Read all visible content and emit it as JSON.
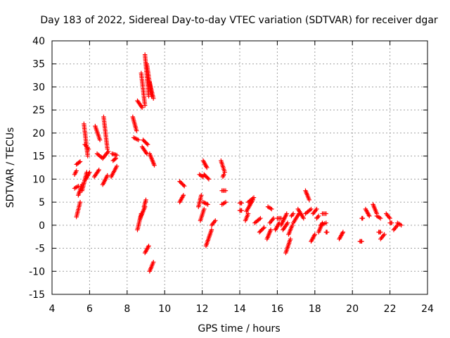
{
  "chart_data": {
    "type": "scatter",
    "title": "Day 183 of 2022, Sidereal Day-to-day VTEC variation (SDTVAR) for receiver dgar",
    "xlabel": "GPS time / hours",
    "ylabel": "SDTVAR / TECUs",
    "xlim": [
      4,
      24
    ],
    "ylim": [
      -15,
      40
    ],
    "xticks": [
      "4",
      "6",
      "8",
      "10",
      "12",
      "14",
      "16",
      "18",
      "20",
      "22",
      "24"
    ],
    "yticks": [
      "-15",
      "-10",
      "-5",
      "0",
      "5",
      "10",
      "15",
      "20",
      "25",
      "30",
      "35",
      "40"
    ],
    "grid": true,
    "marker": "+",
    "color": "#ff0000",
    "series": [
      {
        "name": "SDTVAR",
        "segments": [
          [
            5.2,
            11.0,
            5.3,
            11.8
          ],
          [
            5.2,
            8.0,
            5.4,
            8.5
          ],
          [
            5.3,
            1.8,
            5.5,
            5.0
          ],
          [
            5.3,
            13.2,
            5.5,
            13.8
          ],
          [
            5.4,
            6.5,
            5.6,
            8.8
          ],
          [
            5.6,
            7.5,
            5.85,
            11.5
          ],
          [
            5.7,
            22.0,
            5.9,
            15.0
          ],
          [
            5.8,
            10.0,
            6.0,
            11.5
          ],
          [
            5.75,
            17.5,
            5.95,
            16.5
          ],
          [
            6.3,
            21.5,
            6.55,
            18.5
          ],
          [
            6.25,
            10.5,
            6.5,
            12.0
          ],
          [
            6.4,
            15.5,
            6.7,
            14.5
          ],
          [
            6.75,
            23.5,
            6.95,
            16.5
          ],
          [
            6.7,
            8.8,
            6.95,
            10.8
          ],
          [
            6.7,
            14.5,
            7.0,
            16.0
          ],
          [
            7.2,
            15.5,
            7.45,
            15.2
          ],
          [
            7.15,
            10.5,
            7.45,
            12.8
          ],
          [
            7.25,
            14.0,
            7.4,
            14.5
          ],
          [
            8.3,
            23.5,
            8.5,
            20.5
          ],
          [
            8.35,
            19.0,
            8.6,
            18.5
          ],
          [
            8.55,
            27.0,
            8.8,
            25.5
          ],
          [
            8.55,
            -1.0,
            8.75,
            2.5
          ],
          [
            8.7,
            1.5,
            8.95,
            4.0
          ],
          [
            8.9,
            4.0,
            9.0,
            5.5
          ],
          [
            8.75,
            33.0,
            8.95,
            26.0
          ],
          [
            8.85,
            18.5,
            9.1,
            17.5
          ],
          [
            8.8,
            17.0,
            9.05,
            15.5
          ],
          [
            8.95,
            37.0,
            9.15,
            28.0
          ],
          [
            9.05,
            35.0,
            9.3,
            28.0
          ],
          [
            9.2,
            31.0,
            9.4,
            27.5
          ],
          [
            8.95,
            -6.0,
            9.15,
            -4.5
          ],
          [
            9.2,
            15.5,
            9.45,
            13.0
          ],
          [
            9.2,
            -10.0,
            9.4,
            -8.0
          ],
          [
            10.8,
            9.5,
            11.05,
            8.5
          ],
          [
            10.8,
            5.0,
            11.0,
            6.5
          ],
          [
            11.85,
            11.0,
            12.05,
            10.5
          ],
          [
            11.8,
            4.0,
            11.95,
            6.5
          ],
          [
            11.9,
            1.0,
            12.1,
            3.5
          ],
          [
            12.05,
            14.0,
            12.25,
            12.5
          ],
          [
            12.1,
            11.0,
            12.35,
            10.0
          ],
          [
            12.05,
            5.0,
            12.3,
            4.5
          ],
          [
            12.2,
            -4.5,
            12.5,
            -1.0
          ],
          [
            12.5,
            0.0,
            12.7,
            1.0
          ],
          [
            13.0,
            14.0,
            13.2,
            11.5
          ],
          [
            13.1,
            10.5,
            13.15,
            11.0
          ],
          [
            13.05,
            7.5,
            13.25,
            7.5
          ],
          [
            13.05,
            4.5,
            13.25,
            5.0
          ],
          [
            14.0,
            4.8,
            14.1,
            4.8
          ],
          [
            14.0,
            3.2,
            14.1,
            3.2
          ],
          [
            14.3,
            1.0,
            14.45,
            2.5
          ],
          [
            14.35,
            3.0,
            14.7,
            5.5
          ],
          [
            14.45,
            5.0,
            14.75,
            6.0
          ],
          [
            14.8,
            0.5,
            15.1,
            1.5
          ],
          [
            15.05,
            -1.5,
            15.3,
            -0.5
          ],
          [
            15.45,
            -3.0,
            15.65,
            -1.0
          ],
          [
            15.5,
            4.0,
            15.7,
            3.5
          ],
          [
            15.6,
            0.5,
            15.8,
            1.5
          ],
          [
            15.9,
            -1.0,
            16.1,
            0.5
          ],
          [
            16.0,
            1.5,
            16.2,
            1.5
          ],
          [
            16.2,
            0.0,
            16.5,
            2.5
          ],
          [
            16.3,
            -1.0,
            16.55,
            0.5
          ],
          [
            16.45,
            -6.0,
            16.7,
            -3.0
          ],
          [
            16.6,
            -2.0,
            16.8,
            0.0
          ],
          [
            16.75,
            2.0,
            16.85,
            2.5
          ],
          [
            16.85,
            0.5,
            17.15,
            2.5
          ],
          [
            17.1,
            3.5,
            17.4,
            1.5
          ],
          [
            17.5,
            7.5,
            17.7,
            5.5
          ],
          [
            17.5,
            2.5,
            17.8,
            3.5
          ],
          [
            17.8,
            -3.5,
            18.0,
            -2.0
          ],
          [
            17.9,
            2.5,
            18.1,
            3.5
          ],
          [
            18.1,
            1.5,
            18.2,
            2.0
          ],
          [
            18.2,
            -1.5,
            18.4,
            0.5
          ],
          [
            18.3,
            0.0,
            18.6,
            0.5
          ],
          [
            18.4,
            2.5,
            18.6,
            2.5
          ],
          [
            18.6,
            -1.5,
            18.65,
            -1.5
          ],
          [
            19.3,
            -3.0,
            19.5,
            -1.5
          ],
          [
            20.4,
            -3.5,
            20.5,
            -3.5
          ],
          [
            20.5,
            1.5,
            20.55,
            1.5
          ],
          [
            20.7,
            3.5,
            20.9,
            2.0
          ],
          [
            21.1,
            4.5,
            21.3,
            2.5
          ],
          [
            21.3,
            2.0,
            21.5,
            1.5
          ],
          [
            21.4,
            -1.5,
            21.5,
            -1.5
          ],
          [
            21.5,
            -3.0,
            21.7,
            -2.0
          ],
          [
            21.8,
            2.5,
            22.0,
            1.5
          ],
          [
            22.0,
            0.5,
            22.1,
            0.5
          ],
          [
            22.2,
            -1.0,
            22.4,
            0.0
          ],
          [
            22.4,
            0.5,
            22.6,
            0.0
          ]
        ]
      }
    ]
  }
}
